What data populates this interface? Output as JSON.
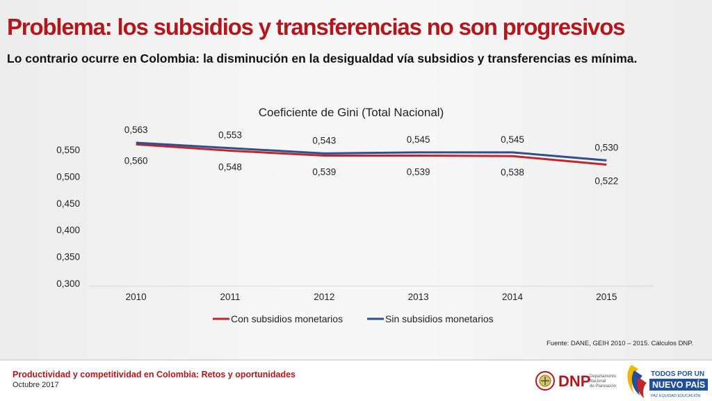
{
  "slide": {
    "title": "Problema: los subsidios y transferencias no son progresivos",
    "subtitle": "Lo contrario ocurre en Colombia: la disminución en la desigualdad vía subsidios y transferencias es mínima.",
    "source": "Fuente: DANE, GEIH 2010 – 2015. Cálculos DNP.",
    "footer": {
      "title": "Productividad y competitividad en Colombia: Retos y oportunidades",
      "date": "Octubre 2017"
    },
    "logos": {
      "dnp": {
        "name": "DNP",
        "line1": "Departamento",
        "line2": "Nacional",
        "line3": "de Planeación"
      },
      "gov": {
        "line1": "TODOS POR UN",
        "line2": "NUEVO PAÍS",
        "line3": "PAZ  EQUIDAD  EDUCACIÓN"
      }
    }
  },
  "chart_data": {
    "type": "line",
    "title": "Coeficiente de Gini (Total Nacional)",
    "x": [
      "2010",
      "2011",
      "2012",
      "2013",
      "2014",
      "2015"
    ],
    "ylim": [
      0.3,
      0.55
    ],
    "yticks": [
      0.3,
      0.35,
      0.4,
      0.45,
      0.5,
      0.55
    ],
    "ytick_labels": [
      "0,300",
      "0,350",
      "0,400",
      "0,450",
      "0,500",
      "0,550"
    ],
    "grid": false,
    "legend_position": "bottom",
    "series": [
      {
        "name": "Con subsidios monetarios",
        "color": "#c0272d",
        "values": [
          0.56,
          0.548,
          0.539,
          0.539,
          0.538,
          0.522
        ],
        "labels": [
          "0,560",
          "0,548",
          "0,539",
          "0,539",
          "0,538",
          "0,522"
        ]
      },
      {
        "name": "Sin subsidios monetarios",
        "color": "#2f4f8f",
        "values": [
          0.563,
          0.553,
          0.543,
          0.545,
          0.545,
          0.53
        ],
        "labels": [
          "0,563",
          "0,553",
          "0,543",
          "0,545",
          "0,545",
          "0,530"
        ]
      }
    ]
  }
}
